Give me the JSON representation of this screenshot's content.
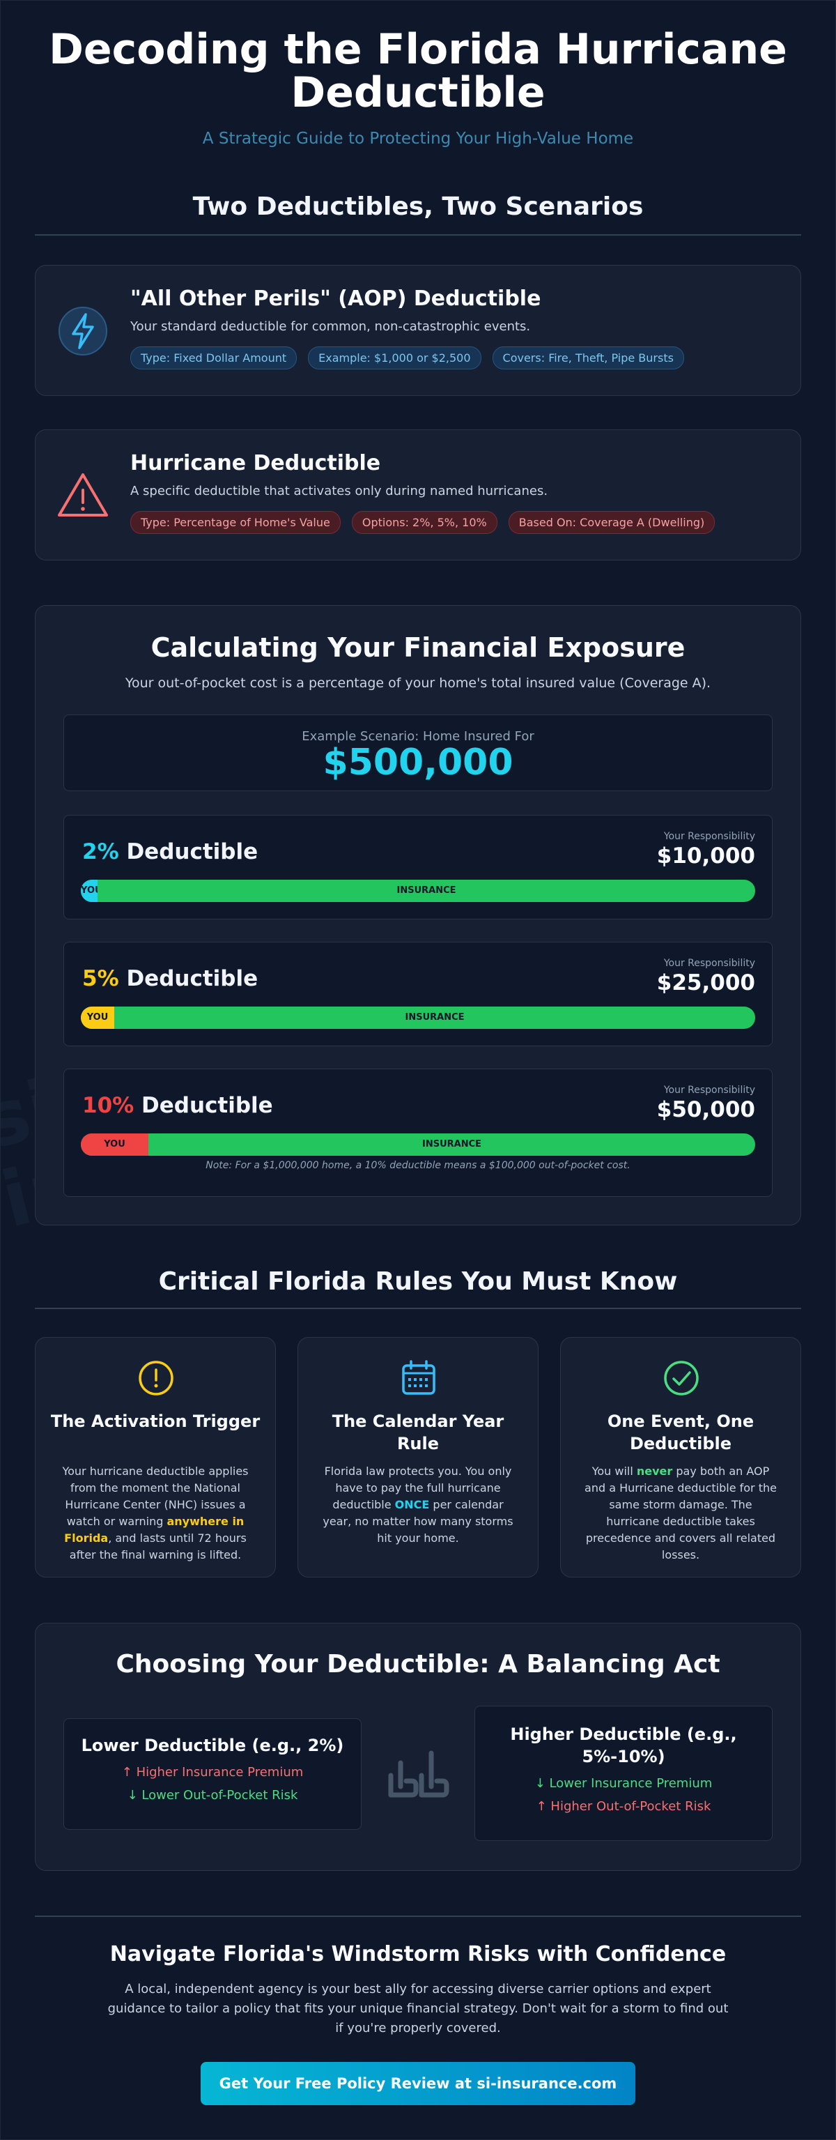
{
  "header": {
    "title": "Decoding the Florida Hurricane Deductible",
    "subtitle": "A Strategic Guide to Protecting Your High-Value Home"
  },
  "watermark": {
    "line1": "si-",
    "line2": "insurance.com"
  },
  "deductibles": {
    "heading": "Two Deductibles, Two Scenarios",
    "aop": {
      "icon": "lightning-icon",
      "title": "\"All Other Perils\" (AOP) Deductible",
      "description": "Your standard deductible for common, non-catastrophic events.",
      "tags": [
        "Type: Fixed Dollar Amount",
        "Example: $1,000 or $2,500",
        "Covers: Fire, Theft, Pipe Bursts"
      ]
    },
    "hurricane": {
      "icon": "warning-icon",
      "title": "Hurricane Deductible",
      "description": "A specific deductible that activates only during named hurricanes.",
      "tags": [
        "Type: Percentage of Home's Value",
        "Options: 2%, 5%, 10%",
        "Based On: Coverage A (Dwelling)"
      ]
    }
  },
  "exposure": {
    "title": "Calculating Your Financial Exposure",
    "subtitle": "Your out-of-pocket cost is a percentage of your home's total insured value (Coverage A).",
    "scenario_label": "Example Scenario: Home Insured For",
    "home_value": "$500,000",
    "responsibility_label": "Your Responsibility",
    "deductible_word": "Deductible",
    "you_label": "YOU",
    "insurance_label": "INSURANCE",
    "rows": [
      {
        "percent": "2%",
        "share": 0.02,
        "amount": "$10,000",
        "color": "#22d3ee"
      },
      {
        "percent": "5%",
        "share": 0.05,
        "amount": "$25,000",
        "color": "#facc15"
      },
      {
        "percent": "10%",
        "share": 0.1,
        "amount": "$50,000",
        "color": "#ef4444"
      }
    ],
    "note": "Note: For a $1,000,000 home, a 10% deductible means a $100,000 out-of-pocket cost."
  },
  "rules": {
    "heading": "Critical Florida Rules You Must Know",
    "items": [
      {
        "icon": "exclamation-circle-icon",
        "title": "The Activation Trigger",
        "text_a": "Your hurricane deductible applies from the moment the National Hurricane Center (NHC) issues a watch or warning ",
        "highlight": "anywhere in Florida",
        "text_b": ", and lasts until 72 hours after the final warning is lifted."
      },
      {
        "icon": "calendar-icon",
        "title": "The Calendar Year Rule",
        "text_a": "Florida law protects you. You only have to pay the full hurricane deductible ",
        "highlight": "ONCE",
        "text_b": " per calendar year, no matter how many storms hit your home."
      },
      {
        "icon": "check-circle-icon",
        "title": "One Event, One Deductible",
        "text_a": "You will ",
        "highlight": "never",
        "text_b": " pay both an AOP and a Hurricane deductible for the same storm damage. The hurricane deductible takes precedence and covers all related losses."
      }
    ]
  },
  "balance": {
    "title": "Choosing Your Deductible: A Balancing Act",
    "icon": "scale-icon",
    "lower": {
      "title": "Lower Deductible (e.g., 2%)",
      "line1": "Higher Insurance Premium",
      "line2": "Lower Out-of-Pocket Risk"
    },
    "higher": {
      "title": "Higher Deductible (e.g., 5%-10%)",
      "line1": "Lower Insurance Premium",
      "line2": "Higher Out-of-Pocket Risk"
    }
  },
  "cta": {
    "title": "Navigate Florida's Windstorm Risks with Confidence",
    "text": "A local, independent agency is your best ally for accessing diverse carrier options and expert guidance to tailor a policy that fits your unique financial strategy. Don't wait for a storm to find out if you're properly covered.",
    "button": "Get Your Free Policy Review at si-insurance.com"
  }
}
